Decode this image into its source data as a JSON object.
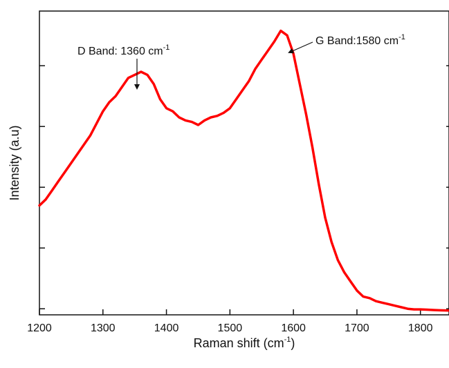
{
  "chart_data": {
    "type": "line",
    "xlabel": {
      "main": "Raman shift (cm",
      "sup": "-1",
      "tail": ")"
    },
    "ylabel": "Intensity (a.u)",
    "xlim": [
      1200,
      1845
    ],
    "ylim": [
      0,
      1
    ],
    "x_ticks": [
      1200,
      1300,
      1400,
      1500,
      1600,
      1700,
      1800
    ],
    "y_ticks": [
      0.02,
      0.22,
      0.42,
      0.62,
      0.82,
      1.02
    ],
    "grid": false,
    "series": [
      {
        "color": "#ff0000",
        "x": [
          1200,
          1210,
          1220,
          1230,
          1240,
          1250,
          1260,
          1270,
          1280,
          1290,
          1300,
          1310,
          1320,
          1330,
          1340,
          1350,
          1360,
          1370,
          1380,
          1390,
          1400,
          1410,
          1420,
          1430,
          1440,
          1450,
          1460,
          1470,
          1480,
          1490,
          1500,
          1510,
          1520,
          1530,
          1540,
          1550,
          1560,
          1570,
          1580,
          1590,
          1600,
          1610,
          1620,
          1630,
          1640,
          1650,
          1660,
          1670,
          1680,
          1690,
          1700,
          1710,
          1720,
          1730,
          1740,
          1750,
          1760,
          1770,
          1780,
          1790,
          1800,
          1810,
          1820,
          1830,
          1845
        ],
        "y": [
          0.36,
          0.38,
          0.41,
          0.44,
          0.47,
          0.5,
          0.53,
          0.56,
          0.59,
          0.63,
          0.67,
          0.7,
          0.72,
          0.75,
          0.78,
          0.79,
          0.8,
          0.79,
          0.76,
          0.71,
          0.68,
          0.67,
          0.65,
          0.64,
          0.635,
          0.625,
          0.64,
          0.65,
          0.655,
          0.665,
          0.68,
          0.71,
          0.74,
          0.77,
          0.81,
          0.84,
          0.87,
          0.9,
          0.935,
          0.92,
          0.86,
          0.76,
          0.66,
          0.55,
          0.43,
          0.32,
          0.24,
          0.18,
          0.14,
          0.11,
          0.08,
          0.06,
          0.055,
          0.045,
          0.04,
          0.035,
          0.03,
          0.025,
          0.02,
          0.018,
          0.018,
          0.017,
          0.016,
          0.015,
          0.014
        ]
      }
    ],
    "annotations": [
      {
        "main": "D Band: 1360 cm",
        "sup": "-1",
        "x": 1360,
        "y": 0.8
      },
      {
        "main": "G Band:1580 cm",
        "sup": "-1",
        "x": 1580,
        "y": 0.935
      }
    ]
  }
}
